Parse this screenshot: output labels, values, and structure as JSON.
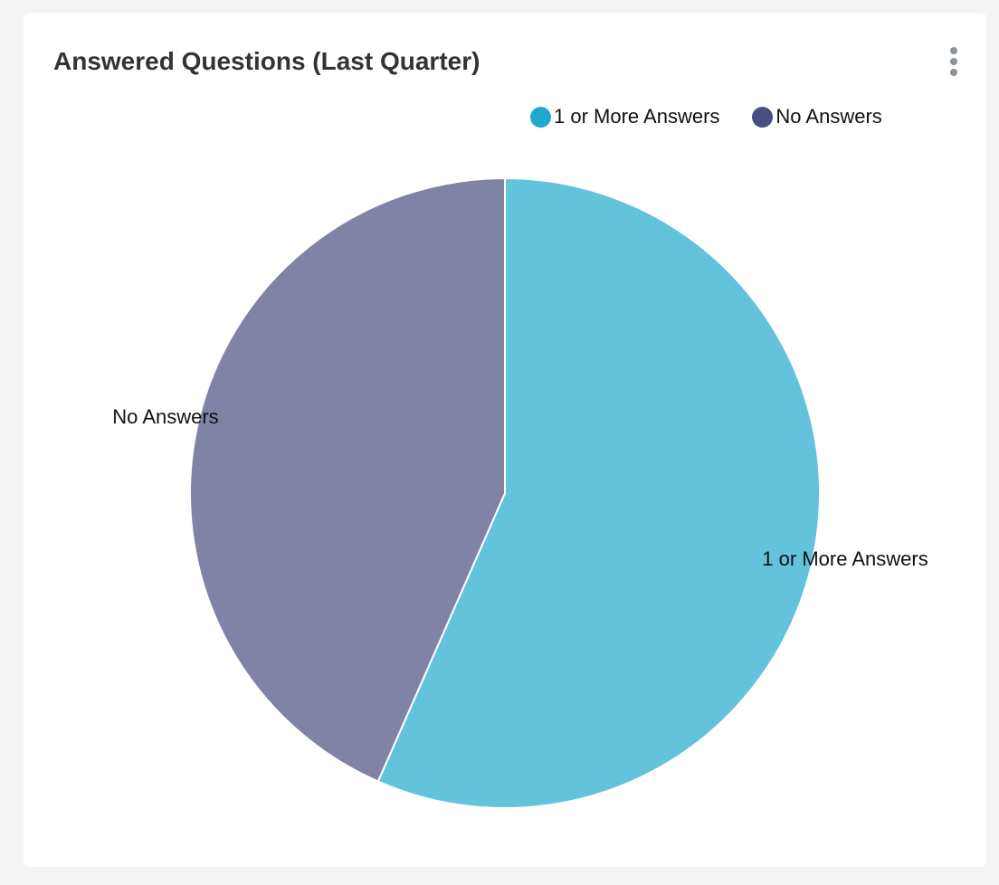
{
  "chart_data": {
    "type": "pie",
    "title": "Answered Questions (Last Quarter)",
    "legend_position": "top-right",
    "slices": [
      {
        "label": "1 or More Answers",
        "value": 56.6,
        "color": "#1fa9cc"
      },
      {
        "label": "No Answers",
        "value": 43.4,
        "color": "#4a4f80"
      }
    ]
  },
  "menu_icon": "kebab-vertical-icon"
}
